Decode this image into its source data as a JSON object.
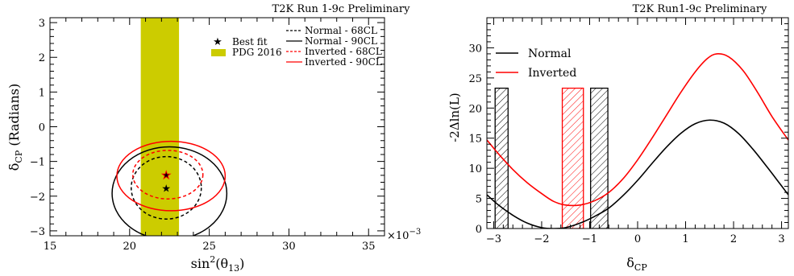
{
  "chart_data": [
    {
      "type": "contour",
      "title": "T2K Run 1-9c Preliminary",
      "xlabel_base": "sin",
      "xlabel_sup": "2",
      "xlabel_open": "(θ",
      "xlabel_sub": "13",
      "xlabel_close": ")",
      "x_multiplier": "×10",
      "x_multiplier_exp": "−3",
      "ylabel_base": "δ",
      "ylabel_sub": "CP",
      "ylabel_rest": " (Radians)",
      "xlim": [
        15,
        36
      ],
      "ylim": [
        -3.1416,
        3.1416
      ],
      "x_ticks": [
        15,
        20,
        25,
        30,
        35
      ],
      "y_ticks": [
        -3,
        -2,
        -1,
        0,
        1,
        2,
        3
      ],
      "legend_position": "top-right",
      "pdg_band": {
        "name": "PDG 2016",
        "x_range": [
          20.7,
          23.1
        ],
        "color": "#cccc00"
      },
      "best_fit": [
        {
          "name": "Best fit",
          "hierarchy": "Normal",
          "x": 22.3,
          "y": -1.76,
          "color": "#000000"
        },
        {
          "hierarchy": "Inverted",
          "x": 22.3,
          "y": -1.38,
          "color": "#ff0000"
        }
      ],
      "contours": [
        {
          "name": "Normal - 68CL",
          "color": "#000000",
          "dashed": true,
          "cx": 22.3,
          "cy": -1.76,
          "rx": 2.2,
          "ry": 0.9
        },
        {
          "name": "Normal - 90CL",
          "color": "#000000",
          "dashed": false,
          "cx": 22.5,
          "cy": -1.92,
          "rx": 3.6,
          "ry": 1.34
        },
        {
          "name": "Inverted - 68CL",
          "color": "#ff0000",
          "dashed": true,
          "cx": 22.4,
          "cy": -1.38,
          "rx": 2.2,
          "ry": 0.7
        },
        {
          "name": "Inverted - 90CL",
          "color": "#ff0000",
          "dashed": false,
          "cx": 22.6,
          "cy": -1.42,
          "rx": 3.4,
          "ry": 1.0
        }
      ]
    },
    {
      "type": "line",
      "title": "T2K Run1-9c Preliminary",
      "xlabel_base": "δ",
      "xlabel_sub": "CP",
      "ylabel": "-2Δln(L)",
      "xlim": [
        -3.1416,
        3.1416
      ],
      "ylim": [
        0,
        35
      ],
      "x_ticks": [
        -3,
        -2,
        -1,
        0,
        1,
        2,
        3
      ],
      "y_ticks": [
        0,
        5,
        10,
        15,
        20,
        25,
        30
      ],
      "legend_position": "top-left",
      "series": [
        {
          "name": "Normal",
          "color": "#000000",
          "points": [
            [
              -3.14,
              5.6
            ],
            [
              -2.9,
              3.9
            ],
            [
              -2.6,
              2.2
            ],
            [
              -2.3,
              0.9
            ],
            [
              -2.0,
              0.15
            ],
            [
              -1.75,
              0.0
            ],
            [
              -1.5,
              0.15
            ],
            [
              -1.2,
              0.9
            ],
            [
              -0.9,
              2.0
            ],
            [
              -0.6,
              3.4
            ],
            [
              -0.3,
              5.5
            ],
            [
              0.0,
              8.0
            ],
            [
              0.3,
              10.8
            ],
            [
              0.6,
              13.5
            ],
            [
              0.9,
              15.8
            ],
            [
              1.2,
              17.4
            ],
            [
              1.5,
              18.0
            ],
            [
              1.8,
              17.5
            ],
            [
              2.1,
              15.8
            ],
            [
              2.4,
              13.2
            ],
            [
              2.7,
              10.2
            ],
            [
              2.95,
              7.6
            ],
            [
              3.14,
              5.6
            ]
          ]
        },
        {
          "name": "Inverted",
          "color": "#ff0000",
          "points": [
            [
              -3.14,
              14.7
            ],
            [
              -2.9,
              12.4
            ],
            [
              -2.6,
              9.8
            ],
            [
              -2.3,
              7.6
            ],
            [
              -2.0,
              5.8
            ],
            [
              -1.75,
              4.5
            ],
            [
              -1.5,
              3.9
            ],
            [
              -1.2,
              3.9
            ],
            [
              -0.9,
              4.6
            ],
            [
              -0.6,
              6.0
            ],
            [
              -0.3,
              8.3
            ],
            [
              0.0,
              11.4
            ],
            [
              0.3,
              15.0
            ],
            [
              0.6,
              18.8
            ],
            [
              0.9,
              22.6
            ],
            [
              1.2,
              26.0
            ],
            [
              1.45,
              28.2
            ],
            [
              1.65,
              29.0
            ],
            [
              1.9,
              28.5
            ],
            [
              2.2,
              26.2
            ],
            [
              2.5,
              22.6
            ],
            [
              2.8,
              18.6
            ],
            [
              3.14,
              14.7
            ]
          ]
        }
      ],
      "hatched_regions": [
        {
          "hierarchy": "Normal",
          "x_range": [
            -2.97,
            -2.7
          ],
          "y_top": 23.3,
          "color": "#000000"
        },
        {
          "hierarchy": "Normal",
          "x_range": [
            -0.98,
            -0.62
          ],
          "y_top": 23.3,
          "color": "#000000"
        },
        {
          "hierarchy": "Inverted",
          "x_range": [
            -1.57,
            -1.13
          ],
          "y_top": 23.3,
          "color": "#ff0000"
        }
      ]
    }
  ]
}
